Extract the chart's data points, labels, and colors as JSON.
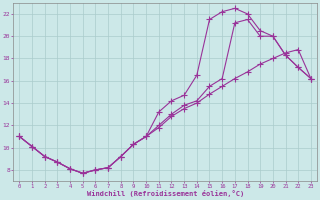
{
  "bg_color": "#cce8e8",
  "grid_color": "#aacccc",
  "line_color": "#993399",
  "marker_color": "#993399",
  "line1_x": [
    0,
    1,
    2,
    3,
    4,
    5,
    6,
    7,
    8,
    9,
    10,
    11,
    12,
    13,
    14,
    15,
    16,
    17,
    18,
    19,
    20,
    21,
    22,
    23
  ],
  "line1_y": [
    11,
    10.1,
    9.2,
    8.7,
    8.1,
    7.7,
    8.0,
    8.2,
    9.2,
    10.3,
    11.0,
    13.2,
    14.2,
    14.7,
    16.5,
    21.5,
    22.2,
    22.5,
    22.0,
    20.5,
    20.0,
    18.3,
    17.2,
    16.2
  ],
  "line2_x": [
    0,
    1,
    2,
    3,
    4,
    5,
    6,
    7,
    8,
    9,
    10,
    11,
    12,
    13,
    14,
    15,
    16,
    17,
    18,
    19,
    20,
    21,
    22,
    23
  ],
  "line2_y": [
    11,
    10.1,
    9.2,
    8.7,
    8.1,
    7.7,
    8.0,
    8.2,
    9.2,
    10.3,
    11.0,
    11.8,
    12.8,
    13.5,
    14.0,
    14.8,
    15.5,
    16.2,
    16.8,
    17.5,
    18.0,
    18.5,
    18.8,
    16.2
  ],
  "line3_x": [
    0,
    1,
    2,
    3,
    4,
    5,
    6,
    7,
    8,
    9,
    10,
    11,
    12,
    13,
    14,
    15,
    16,
    17,
    18,
    19,
    20,
    21,
    22,
    23
  ],
  "line3_y": [
    11,
    10.1,
    9.2,
    8.7,
    8.1,
    7.7,
    8.0,
    8.2,
    9.2,
    10.3,
    11.0,
    12.0,
    13.0,
    13.8,
    14.2,
    15.5,
    16.2,
    21.2,
    21.5,
    20.0,
    20.0,
    18.3,
    17.2,
    16.2
  ],
  "xlim": [
    -0.5,
    23.5
  ],
  "ylim": [
    7.0,
    23.0
  ],
  "xticks": [
    0,
    1,
    2,
    3,
    4,
    5,
    6,
    7,
    8,
    9,
    10,
    11,
    12,
    13,
    14,
    15,
    16,
    17,
    18,
    19,
    20,
    21,
    22,
    23
  ],
  "yticks": [
    8,
    10,
    12,
    14,
    16,
    18,
    20,
    22
  ],
  "xlabel": "Windchill (Refroidissement éolien,°C)",
  "title": ""
}
